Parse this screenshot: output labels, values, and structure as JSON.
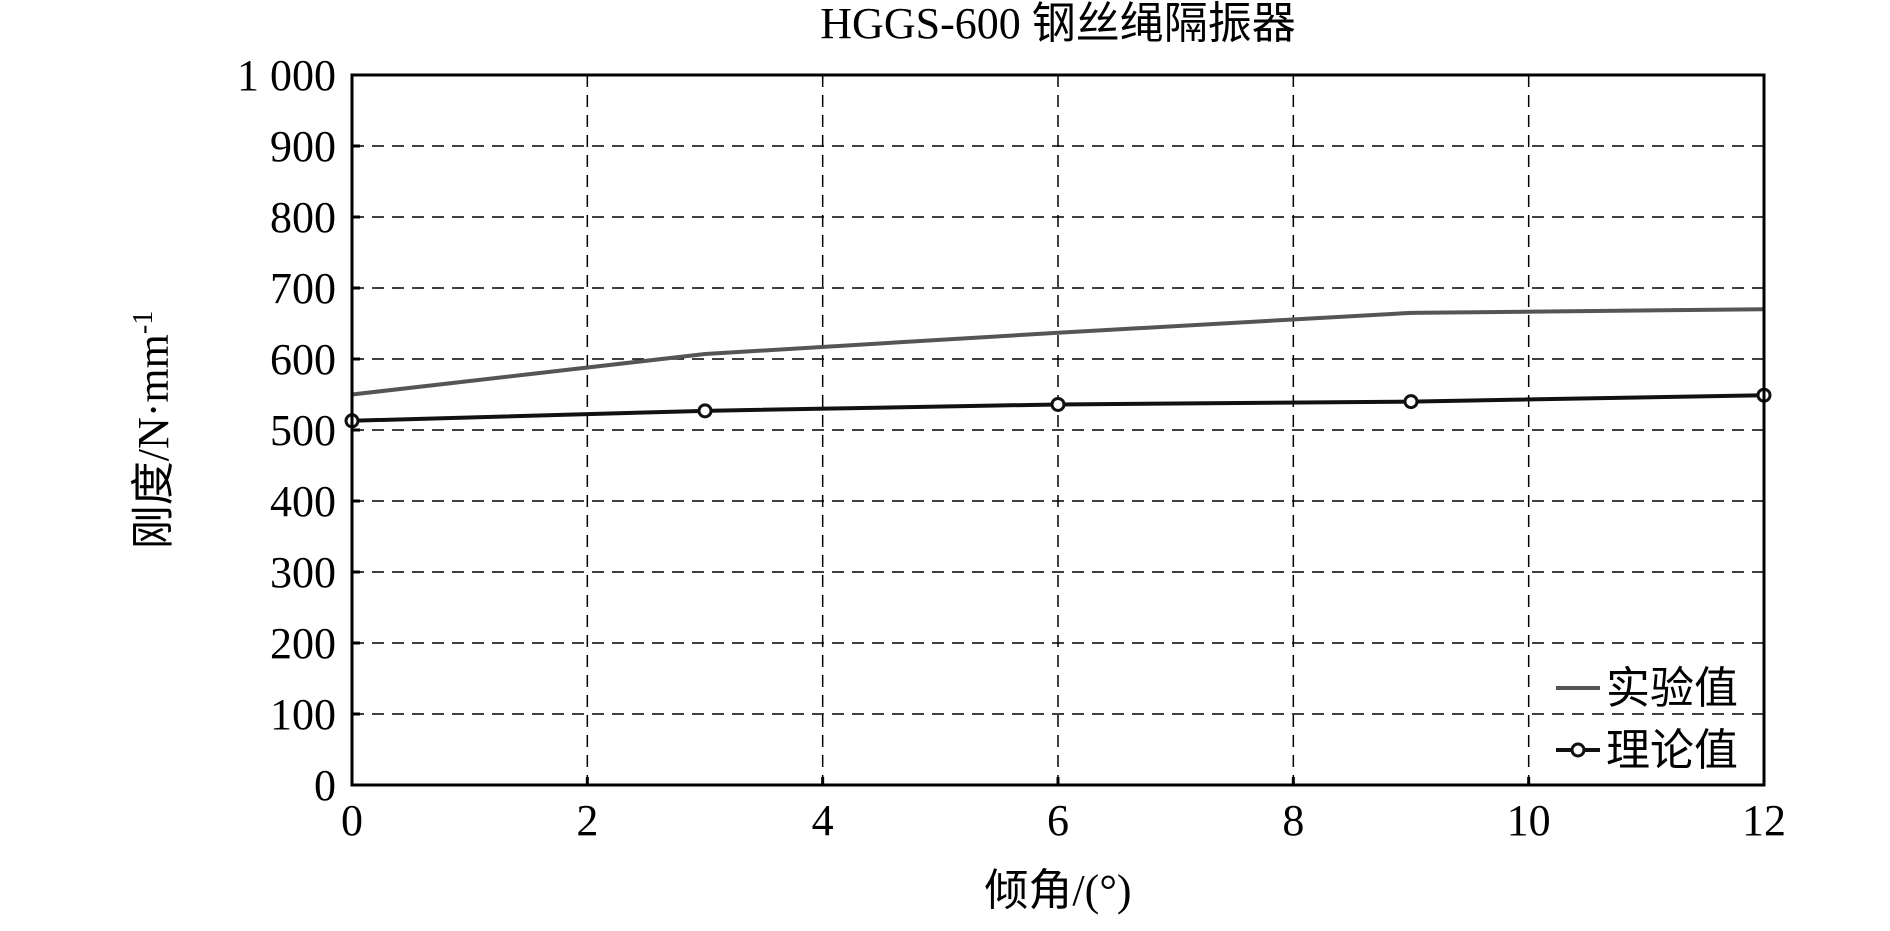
{
  "chart_data": {
    "type": "line",
    "title": "HGGS-600 钢丝绳隔振器",
    "xlabel": "倾角/(°)",
    "ylabel": "刚度/N·mm",
    "ylabel_sup": "-1",
    "xlim": [
      0,
      12
    ],
    "ylim": [
      0,
      1000
    ],
    "xticks": [
      0,
      2,
      4,
      6,
      8,
      10,
      12
    ],
    "yticks": [
      0,
      100,
      200,
      300,
      400,
      500,
      600,
      700,
      800,
      900,
      1000
    ],
    "ytick_labels": [
      "0",
      "100",
      "200",
      "300",
      "400",
      "500",
      "600",
      "700",
      "800",
      "900",
      "1 000"
    ],
    "grid": true,
    "legend_position": "bottom-right",
    "series": [
      {
        "name": "实验值",
        "color": "#555555",
        "marker": "none",
        "x": [
          0,
          3,
          6,
          9,
          12
        ],
        "y": [
          550,
          607,
          637,
          665,
          670
        ]
      },
      {
        "name": "理论值",
        "color": "#111111",
        "marker": "circle",
        "x": [
          0,
          3,
          6,
          9,
          12
        ],
        "y": [
          513,
          527,
          536,
          540,
          549
        ]
      }
    ]
  }
}
